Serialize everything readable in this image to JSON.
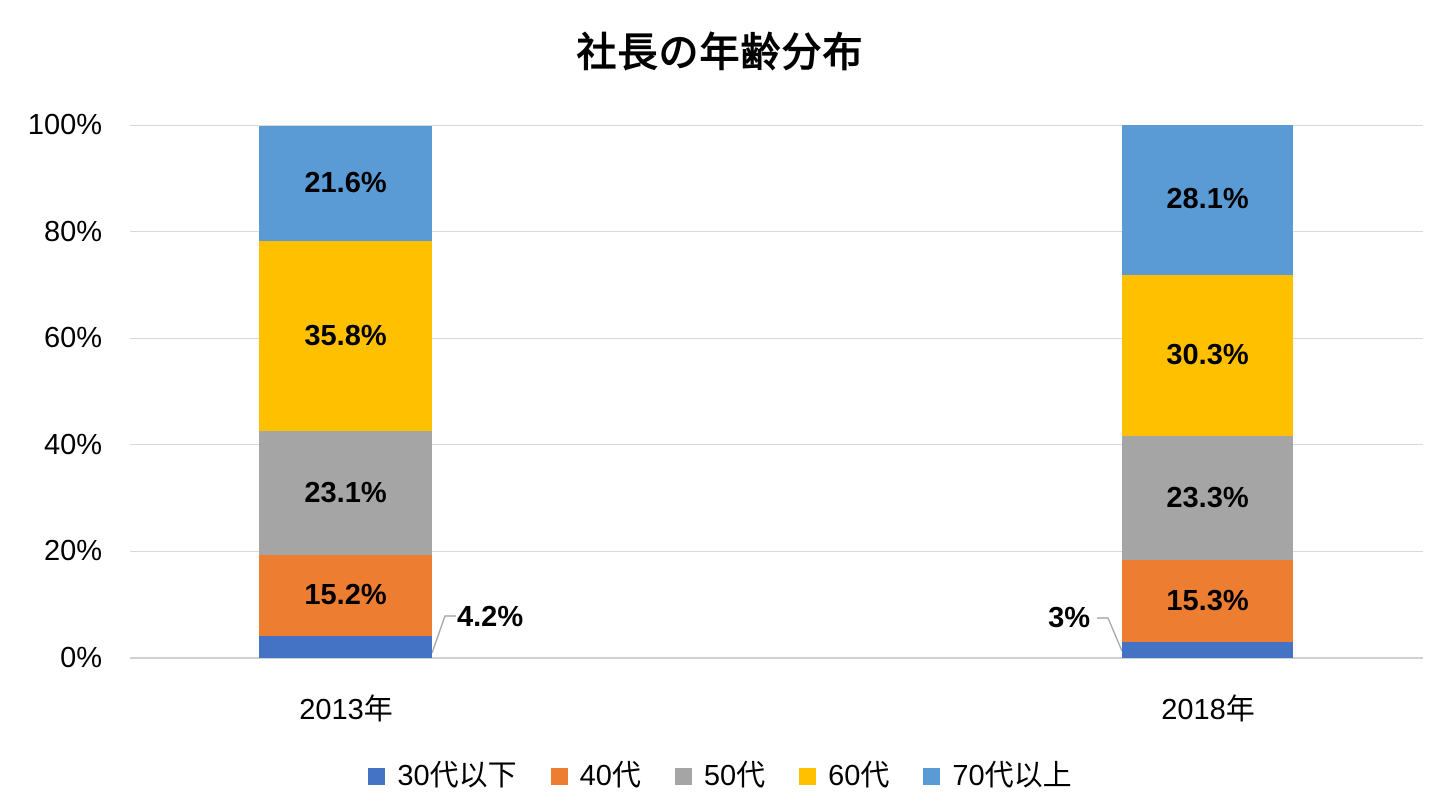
{
  "title": "社長の年齢分布",
  "chart_data": {
    "type": "bar",
    "stacked": true,
    "percent_stacked": true,
    "title": "社長の年齢分布",
    "categories": [
      "2013年",
      "2018年"
    ],
    "series": [
      {
        "name": "30代以下",
        "color": "#4472C4",
        "values": [
          4.2,
          3.0
        ],
        "labels": [
          "4.2%",
          "3%"
        ],
        "label_placement": "outside"
      },
      {
        "name": "40代",
        "color": "#ED7D31",
        "values": [
          15.2,
          15.3
        ],
        "labels": [
          "15.2%",
          "15.3%"
        ],
        "label_placement": "inside"
      },
      {
        "name": "50代",
        "color": "#A5A5A5",
        "values": [
          23.1,
          23.3
        ],
        "labels": [
          "23.1%",
          "23.3%"
        ],
        "label_placement": "inside"
      },
      {
        "name": "60代",
        "color": "#FFC000",
        "values": [
          35.8,
          30.3
        ],
        "labels": [
          "35.8%",
          "30.3%"
        ],
        "label_placement": "inside"
      },
      {
        "name": "70代以上",
        "color": "#5B9BD5",
        "values": [
          21.6,
          28.1
        ],
        "labels": [
          "21.6%",
          "28.1%"
        ],
        "label_placement": "inside"
      }
    ],
    "y_axis": {
      "min": 0,
      "max": 100,
      "step": 20,
      "ticks": [
        "0%",
        "20%",
        "40%",
        "60%",
        "80%",
        "100%"
      ]
    },
    "xlabel": "",
    "ylabel": "",
    "grid": true,
    "legend_position": "bottom"
  },
  "outside_labels": {
    "bar1": "4.2%",
    "bar2": "3%"
  },
  "colors": {
    "gridline": "#d9d9d9",
    "axis_line": "#d0d0d0",
    "leader_line": "#a6a6a6",
    "text": "#000000",
    "background": "#ffffff"
  }
}
